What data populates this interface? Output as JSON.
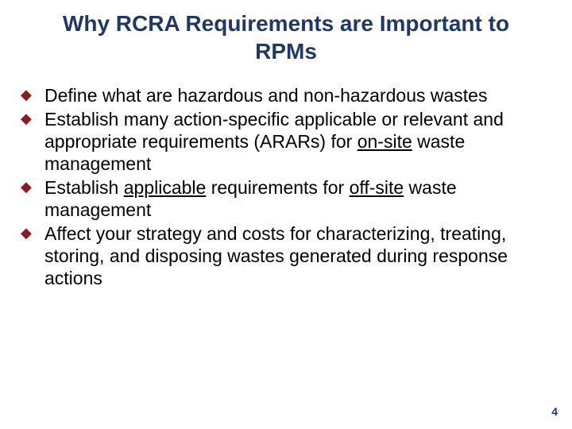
{
  "slide": {
    "title": "Why RCRA Requirements are Important to RPMs",
    "title_color": "#1f3864",
    "title_fontsize": 28,
    "bullet_color": "#8b1a1a",
    "body_fontsize": 23,
    "body_color": "#000000",
    "background_color": "#ffffff",
    "bullets": [
      {
        "segments": [
          {
            "text": "Define what are hazardous and non-hazardous wastes",
            "underline": false
          }
        ]
      },
      {
        "segments": [
          {
            "text": "Establish many action-specific applicable or relevant and appropriate requirements (ARARs) for ",
            "underline": false
          },
          {
            "text": "on-site",
            "underline": true
          },
          {
            "text": " waste management",
            "underline": false
          }
        ]
      },
      {
        "segments": [
          {
            "text": "Establish ",
            "underline": false
          },
          {
            "text": "applicable",
            "underline": true
          },
          {
            "text": " requirements for ",
            "underline": false
          },
          {
            "text": "off-site",
            "underline": true
          },
          {
            "text": " waste management",
            "underline": false
          }
        ]
      },
      {
        "segments": [
          {
            "text": "Affect your strategy and costs for characterizing, treating, storing, and disposing wastes generated during response actions",
            "underline": false
          }
        ]
      }
    ],
    "page_number": "4",
    "page_number_color": "#1f3864"
  }
}
